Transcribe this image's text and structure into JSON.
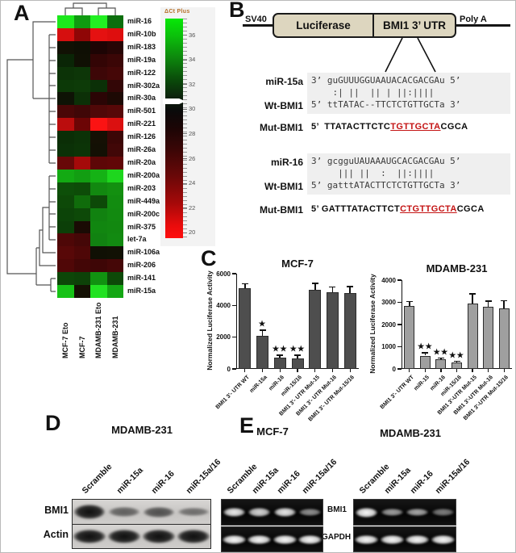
{
  "figure": {
    "panel_labels": {
      "a": "A",
      "b": "B",
      "c": "C",
      "d": "D",
      "e": "E"
    }
  },
  "heatmap": {
    "row_labels": [
      "miR-16",
      "miR-10b",
      "miR-183",
      "miR-19a",
      "miR-122",
      "miR-302a",
      "miR-30a",
      "miR-501",
      "miR-221",
      "miR-126",
      "miR-26a",
      "miR-20a",
      "miR-200a",
      "miR-203",
      "miR-449a",
      "miR-200c",
      "miR-375",
      "let-7a",
      "miR-106a",
      "miR-206",
      "miR-141",
      "miR-15a"
    ],
    "col_labels": [
      "MCF-7 Eto",
      "MCF-7",
      "MDAMB-231 Eto",
      "MDAMB-231"
    ],
    "cell_colors": [
      [
        "#1ce81c",
        "#0f9a10",
        "#22f022",
        "#0c6e0d"
      ],
      [
        "#d60f0f",
        "#8f0606",
        "#e51111",
        "#de0e0e"
      ],
      [
        "#111104",
        "#0f0f04",
        "#1d0404",
        "#270505"
      ],
      [
        "#0a2506",
        "#101004",
        "#330505",
        "#3b0606"
      ],
      [
        "#0c3307",
        "#0d3608",
        "#3d0707",
        "#450707"
      ],
      [
        "#0c3907",
        "#0d3b08",
        "#0b3007",
        "#330606"
      ],
      [
        "#0e1305",
        "#0c3007",
        "#2b0505",
        "#1d0904"
      ],
      [
        "#4a0707",
        "#400707",
        "#500808",
        "#570808"
      ],
      [
        "#bb0d0d",
        "#6c0505",
        "#fb1313",
        "#db1010"
      ],
      [
        "#0b2e06",
        "#0c3207",
        "#151004",
        "#3b0606"
      ],
      [
        "#0b3107",
        "#0c3407",
        "#131004",
        "#410707"
      ],
      [
        "#680808",
        "#a50a0a",
        "#5d0707",
        "#610707"
      ],
      [
        "#13aa13",
        "#129e12",
        "#15b215",
        "#1ed61e"
      ],
      [
        "#0d4f09",
        "#0d4c08",
        "#128810",
        "#139010"
      ],
      [
        "#0d4908",
        "#106c0b",
        "#0d4908",
        "#128c10"
      ],
      [
        "#0c4408",
        "#0d4908",
        "#118210",
        "#128a10"
      ],
      [
        "#0c3f08",
        "#1a0b04",
        "#118610",
        "#128810"
      ],
      [
        "#4e0707",
        "#450707",
        "#118211",
        "#128a11"
      ],
      [
        "#580808",
        "#4e0707",
        "#101004",
        "#111104"
      ],
      [
        "#500707",
        "#430606",
        "#3e0606",
        "#450707"
      ],
      [
        "#0d4608",
        "#0d4208",
        "#119211",
        "#0d4908"
      ],
      [
        "#17c217",
        "#151104",
        "#22e222",
        "#14a714"
      ]
    ],
    "scale": {
      "title": "ΔCt Plus",
      "tick_labels": [
        "36",
        "34",
        "32",
        "30",
        "28",
        "26",
        "24",
        "22",
        "20"
      ]
    }
  },
  "construct": {
    "left_flank": "SV40",
    "segment1": "Luciferase",
    "segment2": "BMI1 3’ UTR",
    "right_flank": "Poly A"
  },
  "alignments": [
    {
      "mirna_label": "miR-15a",
      "wt_label": "Wt-BMI1",
      "mut_label": "Mut-BMI1",
      "mirna_seq": "3’ guGUUUGGUAAUACACGACGAu 5’",
      "pairing": "    :| ||  || | ||:||||",
      "wt_seq": "5’ ttTATAC--TTCTCTGTTGCTa 3’",
      "mut_prefix": "5’  TTATACTTCTC",
      "mut_red": "TGTTGCTA",
      "mut_suffix": "CGCA"
    },
    {
      "mirna_label": "miR-16",
      "wt_label": "Wt-BMI1",
      "mut_label": "Mut-BMI1",
      "mirna_seq": "3’ gcgguUAUAAAUGCACGACGAu 5’",
      "pairing": "     ||| ||  :  ||:||||",
      "wt_seq": "5’ gatttATACTTCTCTGTTGCTa 3’",
      "mut_prefix": "5’ GATTTATACTTCT",
      "mut_red": "CTGTTGCTA",
      "mut_suffix": "CGCA"
    }
  ],
  "chart_data": [
    {
      "type": "bar",
      "title": "MCF-7",
      "ylabel": "Normalized Luciferase Activity",
      "ylim": [
        0,
        6000
      ],
      "yticks": [
        0,
        2000,
        4000,
        6000
      ],
      "categories": [
        "BMI1 3'- UTR WT",
        "miR-15a",
        "miR-16",
        "miR-15/16",
        "BMI1 3'- UTR Mut-15",
        "BMI1 3'- UTR Mut-16",
        "BMI1 3'- UTR Mut-15/16"
      ],
      "values": [
        5100,
        2100,
        700,
        650,
        5000,
        4850,
        4800
      ],
      "errors": [
        250,
        320,
        160,
        200,
        380,
        300,
        380
      ],
      "significance": [
        "",
        "*",
        "**",
        "**",
        "",
        "",
        ""
      ],
      "bar_color": "#4e4e4e",
      "legend": "none",
      "grid": false
    },
    {
      "type": "bar",
      "title": "MDAMB-231",
      "ylabel": "Normalized Luciferase Activity",
      "ylim": [
        0,
        4000
      ],
      "yticks": [
        0,
        1000,
        2000,
        3000,
        4000
      ],
      "categories": [
        "BMI1 3'- UTR WT",
        "miR-15",
        "miR-16",
        "miR-15/16",
        "BMI1 3'-UTR Mut-15",
        "BMI1 3'-UTR Mut-16",
        "BMI1 3'-UTR Mut-15/16"
      ],
      "values": [
        2850,
        600,
        420,
        280,
        2950,
        2800,
        2730
      ],
      "errors": [
        180,
        130,
        60,
        60,
        430,
        250,
        340
      ],
      "significance": [
        "",
        "**",
        "**",
        "**",
        "",
        "",
        ""
      ],
      "bar_color": "#9f9f9f",
      "legend": "none",
      "grid": false
    }
  ],
  "western": {
    "cell_line": "MDAMB-231",
    "lanes": [
      "Scramble",
      "miR-15a",
      "miR-16",
      "miR-15a/16"
    ],
    "rows": [
      {
        "label": "BMI1",
        "band_intensities": [
          1.0,
          0.38,
          0.5,
          0.28
        ]
      },
      {
        "label": "Actin",
        "band_intensities": [
          1.0,
          0.95,
          1.0,
          0.95
        ]
      }
    ]
  },
  "gels": [
    {
      "cell_line": "MCF-7",
      "lanes": [
        "Scramble",
        "miR-15a",
        "miR-16",
        "miR-15a/16"
      ],
      "rows": [
        {
          "label": "BMI1",
          "band_intensities": [
            0.92,
            0.8,
            0.9,
            0.42
          ]
        },
        {
          "label": "GAPDH",
          "band_intensities": [
            1.0,
            1.0,
            1.0,
            0.95
          ]
        }
      ]
    },
    {
      "cell_line": "MDAMB-231",
      "lanes": [
        "Scramble",
        "miR-15a",
        "miR-16",
        "miR-15a/16"
      ],
      "rows": [
        {
          "label": "BMI1",
          "band_intensities": [
            1.0,
            0.5,
            0.55,
            0.32
          ]
        },
        {
          "label": "GAPDH",
          "band_intensities": [
            1.0,
            1.0,
            1.0,
            1.0
          ]
        }
      ]
    }
  ]
}
